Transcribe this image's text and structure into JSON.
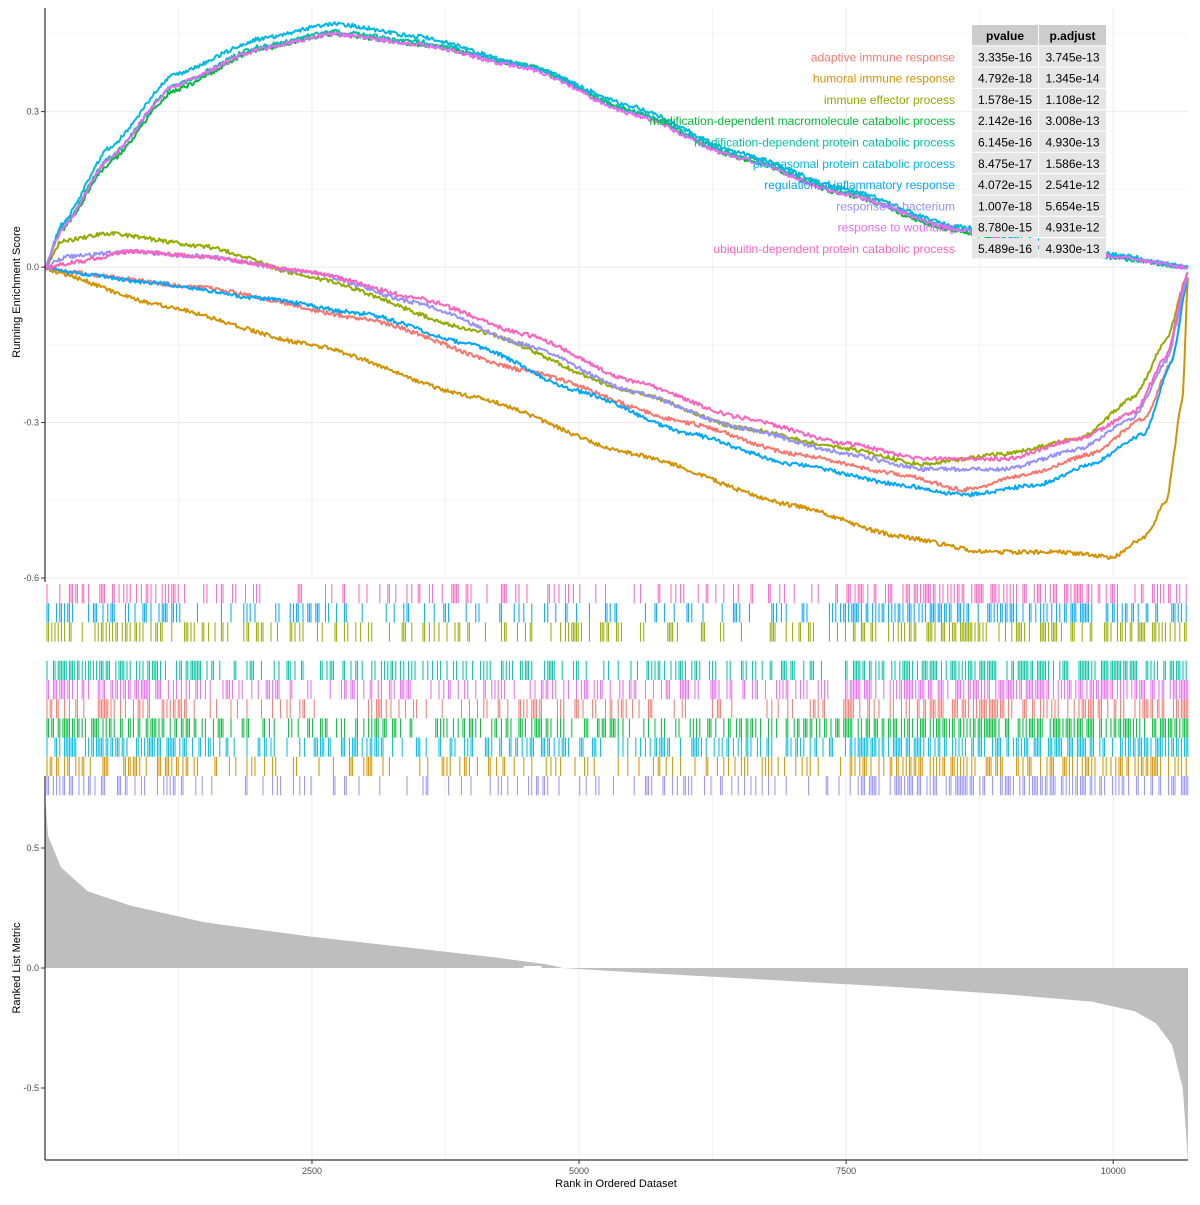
{
  "chart_data": {
    "type": "line",
    "x_axis": {
      "label": "Rank in Ordered Dataset",
      "range": [
        1,
        10700
      ],
      "ticks": [
        2500,
        5000,
        7500,
        10000
      ]
    },
    "panel_es": {
      "ylabel": "Running Enrichment Score",
      "ylim": [
        -0.6,
        0.5
      ],
      "yticks": [
        0.3,
        0.0,
        -0.3,
        -0.6
      ],
      "ytick_labels": [
        "0.3",
        "0.0",
        "-0.3",
        "-0.6"
      ]
    },
    "panel_rank": {
      "ylabel": "Ranked List Metric",
      "ylim": [
        -0.8,
        0.8
      ],
      "yticks": [
        0.5,
        0.0,
        -0.5
      ],
      "ytick_labels": [
        "0.5",
        "0.0",
        "-0.5"
      ],
      "profile": [
        [
          1,
          0.72
        ],
        [
          30,
          0.55
        ],
        [
          150,
          0.42
        ],
        [
          400,
          0.32
        ],
        [
          800,
          0.26
        ],
        [
          1500,
          0.19
        ],
        [
          2500,
          0.13
        ],
        [
          3500,
          0.08
        ],
        [
          4200,
          0.045
        ],
        [
          4700,
          0.015
        ],
        [
          4850,
          0.0
        ],
        [
          5200,
          -0.01
        ],
        [
          6000,
          -0.03
        ],
        [
          7000,
          -0.055
        ],
        [
          8000,
          -0.08
        ],
        [
          9000,
          -0.11
        ],
        [
          9800,
          -0.14
        ],
        [
          10200,
          -0.18
        ],
        [
          10400,
          -0.23
        ],
        [
          10550,
          -0.32
        ],
        [
          10650,
          -0.5
        ],
        [
          10700,
          -0.8
        ]
      ]
    },
    "table": {
      "headers": [
        "pvalue",
        "p.adjust"
      ],
      "header_color": "#cccccc",
      "cell_color": "#e5e5e5"
    },
    "series": [
      {
        "name": "adaptive immune response",
        "color": "#F8766D",
        "pvalue": "3.335e-16",
        "padjust": "3.745e-13",
        "track": 6,
        "points": [
          [
            1,
            0
          ],
          [
            200,
            -0.01
          ],
          [
            1500,
            -0.04
          ],
          [
            3000,
            -0.1
          ],
          [
            4500,
            -0.2
          ],
          [
            6000,
            -0.3
          ],
          [
            7000,
            -0.36
          ],
          [
            8000,
            -0.4
          ],
          [
            8600,
            -0.43
          ],
          [
            9200,
            -0.4
          ],
          [
            9800,
            -0.36
          ],
          [
            10300,
            -0.29
          ],
          [
            10550,
            -0.18
          ],
          [
            10700,
            -0.02
          ]
        ]
      },
      {
        "name": "humoral immune response",
        "color": "#D39200",
        "pvalue": "4.792e-18",
        "padjust": "1.345e-14",
        "track": 9,
        "points": [
          [
            1,
            0
          ],
          [
            100,
            -0.01
          ],
          [
            1000,
            -0.07
          ],
          [
            2500,
            -0.15
          ],
          [
            4000,
            -0.25
          ],
          [
            5500,
            -0.36
          ],
          [
            7000,
            -0.46
          ],
          [
            8000,
            -0.52
          ],
          [
            8800,
            -0.55
          ],
          [
            9500,
            -0.55
          ],
          [
            10000,
            -0.56
          ],
          [
            10300,
            -0.52
          ],
          [
            10500,
            -0.45
          ],
          [
            10650,
            -0.25
          ],
          [
            10700,
            -0.02
          ]
        ]
      },
      {
        "name": "immune effector process",
        "color": "#93AA00",
        "pvalue": "1.578e-15",
        "padjust": "1.108e-12",
        "track": 2,
        "points": [
          [
            1,
            0
          ],
          [
            150,
            0.05
          ],
          [
            600,
            0.065
          ],
          [
            1500,
            0.04
          ],
          [
            2500,
            -0.02
          ],
          [
            4000,
            -0.12
          ],
          [
            5500,
            -0.24
          ],
          [
            6500,
            -0.31
          ],
          [
            7500,
            -0.35
          ],
          [
            8200,
            -0.38
          ],
          [
            9000,
            -0.36
          ],
          [
            9700,
            -0.33
          ],
          [
            10200,
            -0.25
          ],
          [
            10500,
            -0.14
          ],
          [
            10700,
            -0.01
          ]
        ]
      },
      {
        "name": "modification-dependent macromolecule catabolic process",
        "color": "#00BA38",
        "pvalue": "2.142e-16",
        "padjust": "3.008e-13",
        "track": 7,
        "points": [
          [
            1,
            0
          ],
          [
            150,
            0.07
          ],
          [
            600,
            0.2
          ],
          [
            1200,
            0.34
          ],
          [
            2000,
            0.42
          ],
          [
            2700,
            0.45
          ],
          [
            3500,
            0.43
          ],
          [
            4500,
            0.39
          ],
          [
            5500,
            0.3
          ],
          [
            6500,
            0.21
          ],
          [
            7500,
            0.14
          ],
          [
            8500,
            0.07
          ],
          [
            9300,
            0.04
          ],
          [
            10000,
            0.02
          ],
          [
            10700,
            0.0
          ]
        ]
      },
      {
        "name": "modification-dependent protein catabolic process",
        "color": "#00C19F",
        "pvalue": "6.145e-16",
        "padjust": "4.930e-13",
        "track": 4,
        "points": [
          [
            1,
            0
          ],
          [
            150,
            0.075
          ],
          [
            600,
            0.21
          ],
          [
            1200,
            0.35
          ],
          [
            2000,
            0.425
          ],
          [
            2700,
            0.455
          ],
          [
            3500,
            0.435
          ],
          [
            4500,
            0.39
          ],
          [
            5500,
            0.3
          ],
          [
            6500,
            0.215
          ],
          [
            7500,
            0.145
          ],
          [
            8500,
            0.075
          ],
          [
            9300,
            0.04
          ],
          [
            10000,
            0.018
          ],
          [
            10700,
            0.0
          ]
        ]
      },
      {
        "name": "proteasomal protein catabolic process",
        "color": "#00B9E3",
        "pvalue": "8.475e-17",
        "padjust": "1.586e-13",
        "track": 8,
        "points": [
          [
            1,
            0
          ],
          [
            150,
            0.08
          ],
          [
            600,
            0.23
          ],
          [
            1200,
            0.37
          ],
          [
            2000,
            0.44
          ],
          [
            2700,
            0.47
          ],
          [
            3500,
            0.445
          ],
          [
            4500,
            0.39
          ],
          [
            5500,
            0.31
          ],
          [
            6500,
            0.22
          ],
          [
            7500,
            0.15
          ],
          [
            8500,
            0.08
          ],
          [
            9300,
            0.05
          ],
          [
            10000,
            0.025
          ],
          [
            10700,
            0.0
          ]
        ]
      },
      {
        "name": "regulation of inflammatory response",
        "color": "#00A6FF",
        "pvalue": "4.072e-15",
        "padjust": "2.541e-12",
        "track": 1,
        "points": [
          [
            1,
            0
          ],
          [
            200,
            -0.01
          ],
          [
            1000,
            -0.03
          ],
          [
            2000,
            -0.06
          ],
          [
            3000,
            -0.09
          ],
          [
            4000,
            -0.15
          ],
          [
            5000,
            -0.24
          ],
          [
            6000,
            -0.32
          ],
          [
            7000,
            -0.38
          ],
          [
            8000,
            -0.42
          ],
          [
            8600,
            -0.44
          ],
          [
            9300,
            -0.42
          ],
          [
            9800,
            -0.38
          ],
          [
            10300,
            -0.32
          ],
          [
            10550,
            -0.18
          ],
          [
            10700,
            -0.02
          ]
        ]
      },
      {
        "name": "response to bacterium",
        "color": "#9590FF",
        "pvalue": "1.007e-18",
        "padjust": "5.654e-15",
        "track": 10,
        "points": [
          [
            1,
            0
          ],
          [
            200,
            0.02
          ],
          [
            800,
            0.03
          ],
          [
            1500,
            0.02
          ],
          [
            2500,
            -0.01
          ],
          [
            3500,
            -0.07
          ],
          [
            4500,
            -0.15
          ],
          [
            5500,
            -0.24
          ],
          [
            6500,
            -0.31
          ],
          [
            7500,
            -0.36
          ],
          [
            8200,
            -0.39
          ],
          [
            9000,
            -0.39
          ],
          [
            9700,
            -0.35
          ],
          [
            10200,
            -0.29
          ],
          [
            10500,
            -0.18
          ],
          [
            10700,
            -0.02
          ]
        ]
      },
      {
        "name": "response to wounding",
        "color": "#E76BF3",
        "pvalue": "8.780e-15",
        "padjust": "4.931e-12",
        "track": 5,
        "points": [
          [
            1,
            0
          ],
          [
            150,
            0.07
          ],
          [
            600,
            0.21
          ],
          [
            1200,
            0.35
          ],
          [
            2000,
            0.42
          ],
          [
            2700,
            0.45
          ],
          [
            3500,
            0.43
          ],
          [
            4500,
            0.385
          ],
          [
            5500,
            0.295
          ],
          [
            6500,
            0.21
          ],
          [
            7500,
            0.14
          ],
          [
            8500,
            0.075
          ],
          [
            9300,
            0.04
          ],
          [
            10000,
            0.02
          ],
          [
            10700,
            0.0
          ]
        ]
      },
      {
        "name": "ubiquitin-dependent protein catabolic process",
        "color": "#FF62BC",
        "pvalue": "5.489e-16",
        "padjust": "4.930e-13",
        "track": 0,
        "points": [
          [
            1,
            0
          ],
          [
            300,
            0.01
          ],
          [
            800,
            0.03
          ],
          [
            1500,
            0.02
          ],
          [
            2500,
            -0.01
          ],
          [
            3500,
            -0.06
          ],
          [
            4500,
            -0.13
          ],
          [
            5500,
            -0.22
          ],
          [
            6500,
            -0.29
          ],
          [
            7500,
            -0.34
          ],
          [
            8200,
            -0.37
          ],
          [
            9000,
            -0.37
          ],
          [
            9700,
            -0.33
          ],
          [
            10200,
            -0.28
          ],
          [
            10500,
            -0.17
          ],
          [
            10700,
            -0.01
          ]
        ]
      }
    ]
  }
}
